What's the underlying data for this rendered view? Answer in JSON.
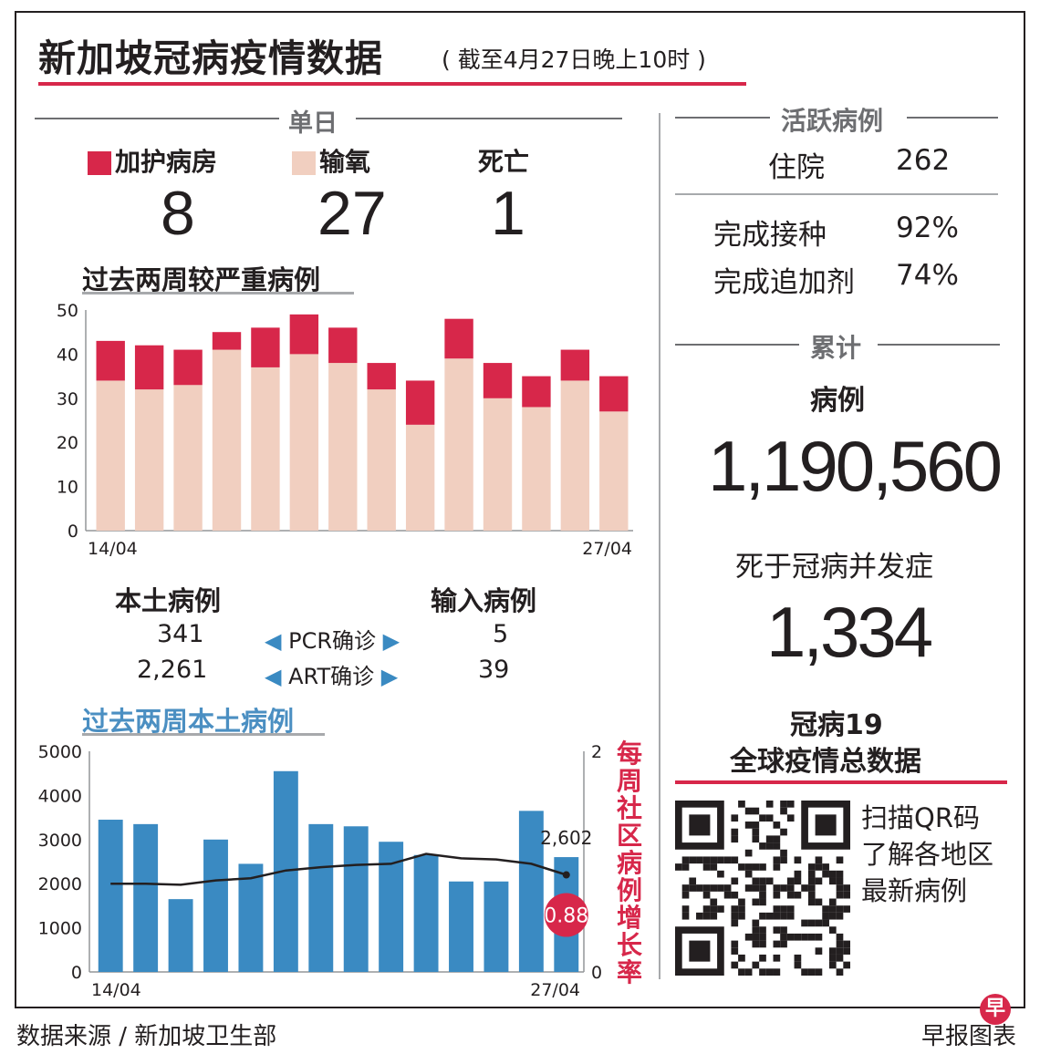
{
  "title": "新加坡冠病疫情数据",
  "subtitle": "( 截至4月27日晚上10时 )",
  "daily": {
    "heading": "单日",
    "icu_label": "加护病房",
    "icu_value": "8",
    "oxygen_label": "输氧",
    "oxygen_value": "27",
    "death_label": "死亡",
    "death_value": "1"
  },
  "severe_chart_title": "过去两周较严重病例",
  "local_cases": {
    "local_heading": "本土病例",
    "imported_heading": "输入病例",
    "pcr_label": "PCR确诊",
    "art_label": "ART确诊",
    "local_pcr": "341",
    "local_art": "2,261",
    "imported_pcr": "5",
    "imported_art": "39"
  },
  "community_chart_title": "过去两周本土病例",
  "active": {
    "heading": "活跃病例",
    "hospital_label": "住院",
    "hospital_value": "262",
    "vaccinated_label": "完成接种",
    "vaccinated_value": "92%",
    "booster_label": "完成追加剂",
    "booster_value": "74%"
  },
  "cumulative": {
    "heading": "累计",
    "cases_label": "病例",
    "cases_value": "1,190,560",
    "deaths_label": "死于冠病并发症",
    "deaths_value": "1,334"
  },
  "global": {
    "title_line1": "冠病19",
    "title_line2": "全球疫情总数据",
    "qr_text_1": "扫描QR码",
    "qr_text_2": "了解各地区",
    "qr_text_3": "最新病例"
  },
  "footer": {
    "source": "数据来源 / 新加坡卫生部",
    "credit": "早报图表",
    "logo_char": "早"
  },
  "colors": {
    "accent": "#d7274a",
    "oxygen": "#f1cfc0",
    "bars_blue": "#3a8ac2",
    "label_blue": "#4b8fc2"
  },
  "chart_data": [
    {
      "type": "bar",
      "stacked": true,
      "x_tick_labels": [
        "14/04",
        "27/04"
      ],
      "series": [
        {
          "name": "输氧",
          "values": [
            34,
            32,
            33,
            41,
            37,
            40,
            38,
            32,
            24,
            39,
            30,
            28,
            34,
            27
          ]
        },
        {
          "name": "加护病房",
          "values": [
            9,
            10,
            8,
            4,
            9,
            9,
            8,
            6,
            10,
            9,
            8,
            7,
            7,
            8
          ]
        }
      ],
      "ylim": [
        0,
        50
      ],
      "yticks": [
        0,
        10,
        20,
        30,
        40,
        50
      ],
      "grid": false
    },
    {
      "type": "bar",
      "x_tick_labels": [
        "14/04",
        "27/04"
      ],
      "series": [
        {
          "name": "本土病例",
          "type": "bar",
          "values": [
            3450,
            3350,
            1650,
            3000,
            2450,
            4550,
            3350,
            3300,
            2950,
            2650,
            2050,
            2050,
            3650,
            2602
          ]
        },
        {
          "name": "每周社区病例增长率",
          "type": "line",
          "axis": "right",
          "values": [
            0.8,
            0.8,
            0.79,
            0.83,
            0.85,
            0.92,
            0.95,
            0.97,
            0.98,
            1.07,
            1.03,
            1.02,
            0.98,
            0.88
          ]
        }
      ],
      "ylim": [
        0,
        5000
      ],
      "yticks": [
        0,
        1000,
        2000,
        3000,
        4000,
        5000
      ],
      "y2lim": [
        0,
        2
      ],
      "y2ticks": [
        0,
        2
      ],
      "y2label": "每周社区病例增长率",
      "annotations": [
        "2,602",
        "0.88"
      ],
      "grid": false
    }
  ]
}
